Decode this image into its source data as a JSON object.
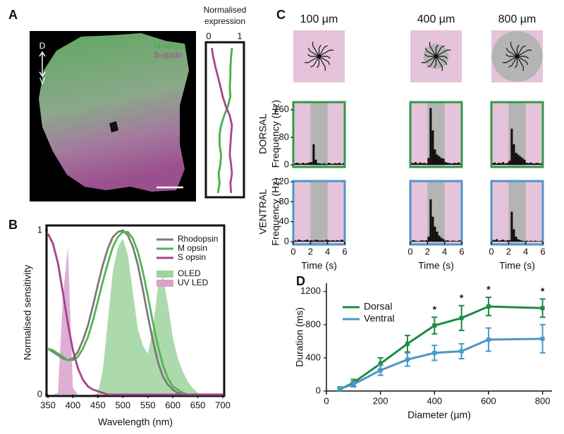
{
  "panel_labels": [
    "A",
    "B",
    "C",
    "D"
  ],
  "image": {
    "orientation": [
      "D",
      "V"
    ]
  },
  "chart_data": [
    {
      "type": "line",
      "orientation": "vertical",
      "title": "Normalised expression",
      "xlim": [
        0,
        1
      ],
      "xticks": [
        0,
        1
      ],
      "series": [
        {
          "name": "M-opsin",
          "color": "#45b04a",
          "values": [
            0.75,
            0.72,
            0.7,
            0.7,
            0.68,
            0.7,
            0.62,
            0.5,
            0.4,
            0.35,
            0.35,
            0.4,
            0.38,
            0.32,
            0.35,
            0.3
          ]
        },
        {
          "name": "S-opsin",
          "color": "#a8438f",
          "values": [
            0.1,
            0.15,
            0.22,
            0.3,
            0.38,
            0.45,
            0.55,
            0.68,
            0.75,
            0.72,
            0.7,
            0.68,
            0.72,
            0.75,
            0.7,
            0.72
          ]
        }
      ]
    },
    {
      "type": "line",
      "xlabel": "Wavelength (nm)",
      "ylabel": "Normalised  sensitivity",
      "x": [
        350,
        360,
        370,
        380,
        390,
        400,
        410,
        420,
        430,
        440,
        450,
        460,
        470,
        480,
        490,
        500,
        510,
        520,
        530,
        540,
        550,
        560,
        570,
        580,
        590,
        600,
        610,
        620,
        630,
        640,
        650,
        660,
        670,
        680,
        690,
        700
      ],
      "xlim": [
        350,
        700
      ],
      "xticks": [
        350,
        400,
        450,
        500,
        550,
        600,
        650,
        700
      ],
      "ylim": [
        0,
        1
      ],
      "yticks": [
        0,
        1
      ],
      "series": [
        {
          "name": "Rhodopsin",
          "color": "#7a7a7a",
          "kind": "line",
          "values": [
            0.28,
            0.26,
            0.24,
            0.22,
            0.21,
            0.22,
            0.26,
            0.33,
            0.42,
            0.54,
            0.67,
            0.79,
            0.89,
            0.96,
            0.99,
            1,
            0.97,
            0.9,
            0.79,
            0.64,
            0.48,
            0.33,
            0.2,
            0.11,
            0.06,
            0.03,
            0.01,
            0.01,
            0,
            0,
            0,
            0,
            0,
            0,
            0,
            0
          ]
        },
        {
          "name": "M opsin",
          "color": "#52b552",
          "kind": "line",
          "values": [
            0.28,
            0.27,
            0.25,
            0.23,
            0.21,
            0.21,
            0.23,
            0.28,
            0.35,
            0.45,
            0.57,
            0.69,
            0.8,
            0.9,
            0.96,
            0.99,
            0.99,
            0.95,
            0.87,
            0.75,
            0.6,
            0.44,
            0.3,
            0.18,
            0.1,
            0.05,
            0.03,
            0.01,
            0,
            0,
            0,
            0,
            0,
            0,
            0,
            0
          ]
        },
        {
          "name": "S opsin",
          "color": "#a8408d",
          "kind": "line",
          "values": [
            0.98,
            0.92,
            0.8,
            0.62,
            0.43,
            0.27,
            0.16,
            0.09,
            0.05,
            0.03,
            0.02,
            0.01,
            0,
            0,
            0,
            0,
            0,
            0,
            0,
            0,
            0,
            0,
            0,
            0,
            0,
            0,
            0,
            0,
            0,
            0,
            0,
            0,
            0,
            0,
            0,
            0
          ]
        },
        {
          "name": "OLED",
          "color": "#9fd49f",
          "kind": "area",
          "values": [
            0,
            0,
            0,
            0,
            0,
            0,
            0,
            0,
            0,
            0,
            0.01,
            0.15,
            0.45,
            0.75,
            0.9,
            0.95,
            0.85,
            0.62,
            0.4,
            0.3,
            0.25,
            0.4,
            0.65,
            0.72,
            0.55,
            0.35,
            0.22,
            0.14,
            0.08,
            0.04,
            0.01,
            0,
            0,
            0,
            0,
            0
          ]
        },
        {
          "name": "UV LED",
          "color": "#d8a0cb",
          "kind": "area",
          "values": [
            0,
            0,
            0.01,
            0.6,
            0.9,
            0.04,
            0,
            0,
            0,
            0,
            0,
            0,
            0,
            0,
            0,
            0,
            0,
            0,
            0,
            0,
            0,
            0,
            0,
            0,
            0,
            0,
            0,
            0,
            0,
            0,
            0,
            0,
            0,
            0,
            0,
            0
          ]
        }
      ]
    },
    {
      "type": "histogram",
      "title": "100 µm",
      "row_label": "DORSAL",
      "ylabel": "Frequency (Hz)",
      "xlim": [
        0,
        6
      ],
      "ylim": [
        0,
        180
      ],
      "yticks": [
        0,
        80,
        160
      ],
      "shade": [
        2,
        4
      ],
      "frame_color": "#2f9a4a",
      "background_color": "#e5c3db",
      "shade_color": "#b4b4b4",
      "bar_color": "#111111",
      "bins": [
        0,
        0.25,
        0.5,
        0.75,
        1,
        1.25,
        1.5,
        1.75,
        2,
        2.25,
        2.5,
        2.75,
        3,
        3.25,
        3.5,
        3.75,
        4,
        4.25,
        4.5,
        4.75,
        5,
        5.25,
        5.5,
        5.75,
        6
      ],
      "values": [
        4,
        6,
        5,
        3,
        6,
        4,
        5,
        7,
        8,
        60,
        15,
        5,
        4,
        3,
        5,
        2,
        6,
        4,
        3,
        5,
        4,
        6,
        3,
        5
      ]
    },
    {
      "type": "histogram",
      "title": "400 µm",
      "xlim": [
        0,
        6
      ],
      "ylim": [
        0,
        180
      ],
      "shade": [
        2,
        4
      ],
      "frame_color": "#2f9a4a",
      "background_color": "#e5c3db",
      "shade_color": "#b4b4b4",
      "bar_color": "#111111",
      "bins": [
        0,
        0.25,
        0.5,
        0.75,
        1,
        1.25,
        1.5,
        1.75,
        2,
        2.25,
        2.5,
        2.75,
        3,
        3.25,
        3.5,
        3.75,
        4,
        4.25,
        4.5,
        4.75,
        5,
        5.25,
        5.5,
        5.75,
        6
      ],
      "values": [
        6,
        5,
        8,
        4,
        7,
        5,
        6,
        4,
        20,
        165,
        100,
        45,
        30,
        25,
        20,
        18,
        8,
        6,
        5,
        4,
        6,
        5,
        7,
        4
      ]
    },
    {
      "type": "histogram",
      "title": "800 µm",
      "xlim": [
        0,
        6
      ],
      "ylim": [
        0,
        180
      ],
      "shade": [
        2,
        4
      ],
      "frame_color": "#2f9a4a",
      "background_color": "#e5c3db",
      "shade_color": "#b4b4b4",
      "bar_color": "#111111",
      "bins": [
        0,
        0.25,
        0.5,
        0.75,
        1,
        1.25,
        1.5,
        1.75,
        2,
        2.25,
        2.5,
        2.75,
        3,
        3.25,
        3.5,
        3.75,
        4,
        4.25,
        4.5,
        4.75,
        5,
        5.25,
        5.5,
        5.75,
        6
      ],
      "values": [
        5,
        7,
        4,
        6,
        5,
        8,
        4,
        6,
        12,
        105,
        60,
        35,
        30,
        25,
        20,
        15,
        6,
        5,
        7,
        4,
        5,
        6,
        4,
        5
      ]
    },
    {
      "type": "histogram",
      "row_label": "VENTRAL",
      "ylabel": "Frequency (Hz)",
      "xlabel": "Time (s)",
      "xlim": [
        0,
        6
      ],
      "xticks": [
        0,
        2,
        4,
        6
      ],
      "ylim": [
        0,
        120
      ],
      "yticks": [
        0,
        40,
        80,
        120
      ],
      "shade": [
        2,
        4
      ],
      "frame_color": "#4d97c9",
      "background_color": "#e5c3db",
      "shade_color": "#b4b4b4",
      "bar_color": "#111111",
      "bins": [
        0,
        0.25,
        0.5,
        0.75,
        1,
        1.25,
        1.5,
        1.75,
        2,
        2.25,
        2.5,
        2.75,
        3,
        3.25,
        3.5,
        3.75,
        4,
        4.25,
        4.5,
        4.75,
        5,
        5.25,
        5.5,
        5.75,
        6
      ],
      "values": [
        3,
        2,
        4,
        3,
        2,
        3,
        4,
        2,
        3,
        2,
        4,
        3,
        2,
        3,
        2,
        4,
        3,
        2,
        3,
        2,
        3,
        2,
        4,
        3
      ]
    },
    {
      "type": "histogram",
      "xlabel": "Time (s)",
      "xlim": [
        0,
        6
      ],
      "xticks": [
        0,
        2,
        4,
        6
      ],
      "ylim": [
        0,
        120
      ],
      "shade": [
        2,
        4
      ],
      "frame_color": "#4d97c9",
      "background_color": "#e5c3db",
      "shade_color": "#b4b4b4",
      "bar_color": "#111111",
      "bins": [
        0,
        0.25,
        0.5,
        0.75,
        1,
        1.25,
        1.5,
        1.75,
        2,
        2.25,
        2.5,
        2.75,
        3,
        3.25,
        3.5,
        3.75,
        4,
        4.25,
        4.5,
        4.75,
        5,
        5.25,
        5.5,
        5.75,
        6
      ],
      "values": [
        2,
        3,
        2,
        1,
        2,
        3,
        2,
        3,
        10,
        85,
        50,
        30,
        20,
        12,
        8,
        5,
        2,
        3,
        1,
        2,
        2,
        1,
        2,
        3
      ]
    },
    {
      "type": "histogram",
      "xlabel": "Time (s)",
      "xlim": [
        0,
        6
      ],
      "xticks": [
        0,
        2,
        4,
        6
      ],
      "ylim": [
        0,
        120
      ],
      "shade": [
        2,
        4
      ],
      "frame_color": "#4d97c9",
      "background_color": "#e5c3db",
      "shade_color": "#b4b4b4",
      "bar_color": "#111111",
      "bins": [
        0,
        0.25,
        0.5,
        0.75,
        1,
        1.25,
        1.5,
        1.75,
        2,
        2.25,
        2.5,
        2.75,
        3,
        3.25,
        3.5,
        3.75,
        4,
        4.25,
        4.5,
        4.75,
        5,
        5.25,
        5.5,
        5.75,
        6
      ],
      "values": [
        4,
        3,
        5,
        2,
        3,
        4,
        2,
        3,
        3,
        60,
        25,
        10,
        5,
        3,
        2,
        1,
        2,
        1,
        2,
        1,
        2,
        1,
        1,
        2
      ]
    },
    {
      "type": "line",
      "xlabel": "Diameter (µm)",
      "ylabel": "Duration (ms)",
      "x": [
        50,
        100,
        200,
        300,
        400,
        500,
        600,
        800
      ],
      "xlim": [
        0,
        835
      ],
      "xticks": [
        0,
        200,
        400,
        600,
        800
      ],
      "ylim": [
        0,
        1300
      ],
      "yticks": [
        0,
        400,
        800,
        1200
      ],
      "series": [
        {
          "name": "Dorsal",
          "color": "#1e8a45",
          "kind": "line",
          "values": [
            20,
            100,
            330,
            570,
            790,
            880,
            1020,
            1000
          ],
          "errors": [
            20,
            40,
            70,
            100,
            100,
            150,
            110,
            110
          ]
        },
        {
          "name": "Ventral",
          "color": "#4a97c9",
          "kind": "line",
          "values": [
            30,
            80,
            250,
            380,
            460,
            480,
            620,
            630
          ],
          "errors": [
            20,
            30,
            60,
            80,
            90,
            90,
            140,
            170
          ]
        }
      ],
      "annotations": [
        {
          "text": "*",
          "x": 400
        },
        {
          "text": "*",
          "x": 500
        },
        {
          "text": "*",
          "x": 600
        },
        {
          "text": "*",
          "x": 800
        }
      ]
    }
  ]
}
